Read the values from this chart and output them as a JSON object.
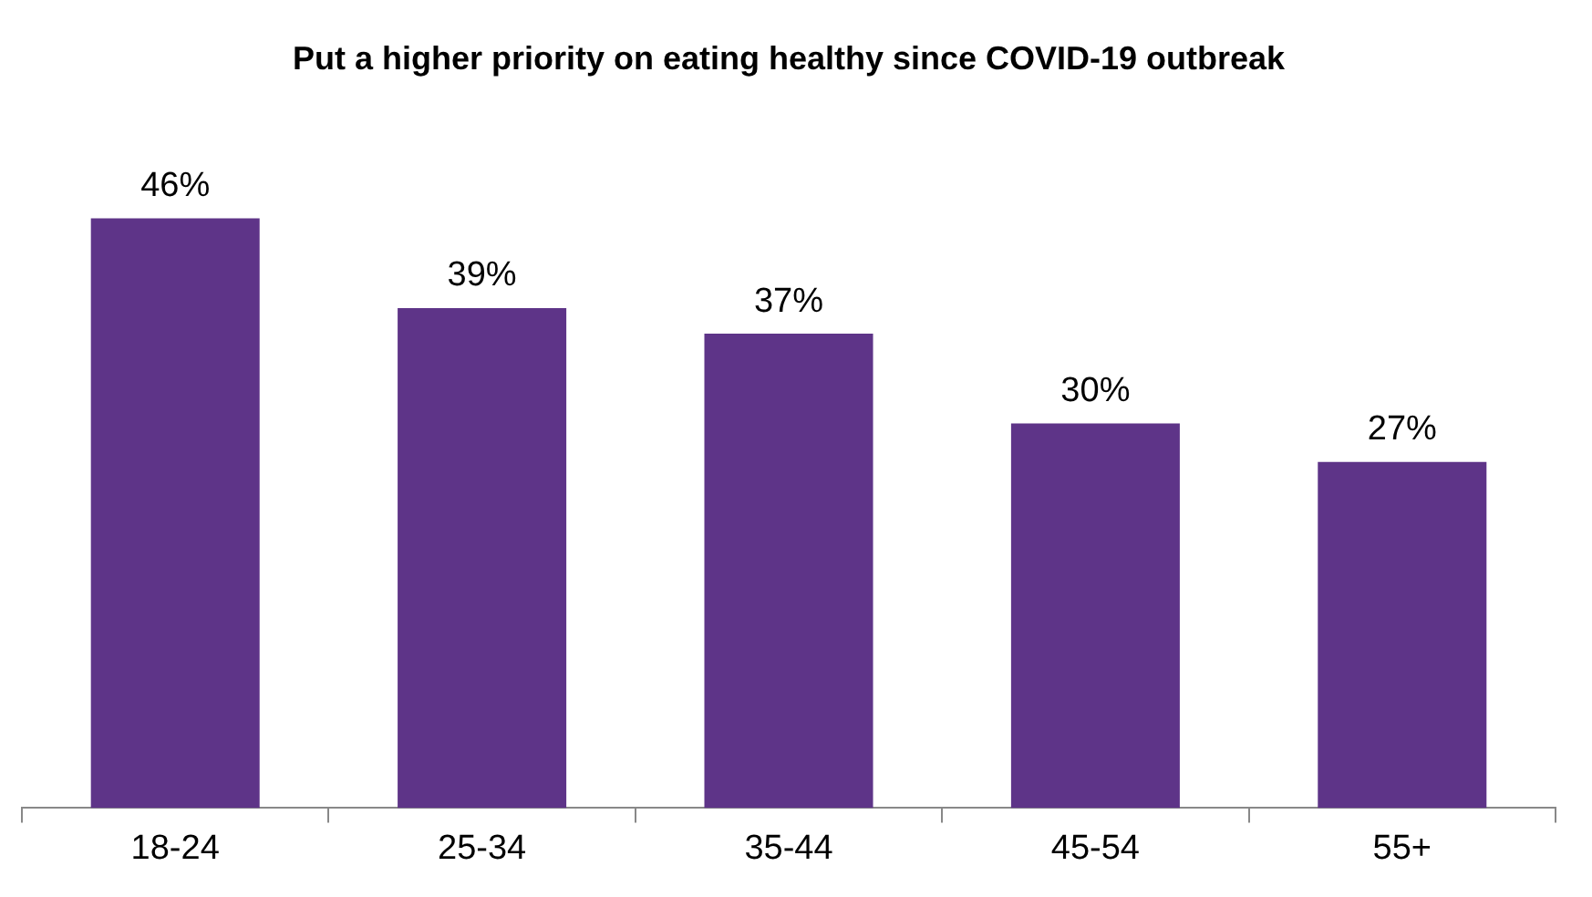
{
  "chart_data": {
    "type": "bar",
    "title": "Put a higher priority on eating healthy since COVID-19 outbreak",
    "categories": [
      "18-24",
      "25-34",
      "35-44",
      "45-54",
      "55+"
    ],
    "values": [
      46,
      39,
      37,
      30,
      27
    ],
    "value_labels": [
      "46%",
      "39%",
      "37%",
      "30%",
      "27%"
    ],
    "color": "#5e3488"
  }
}
